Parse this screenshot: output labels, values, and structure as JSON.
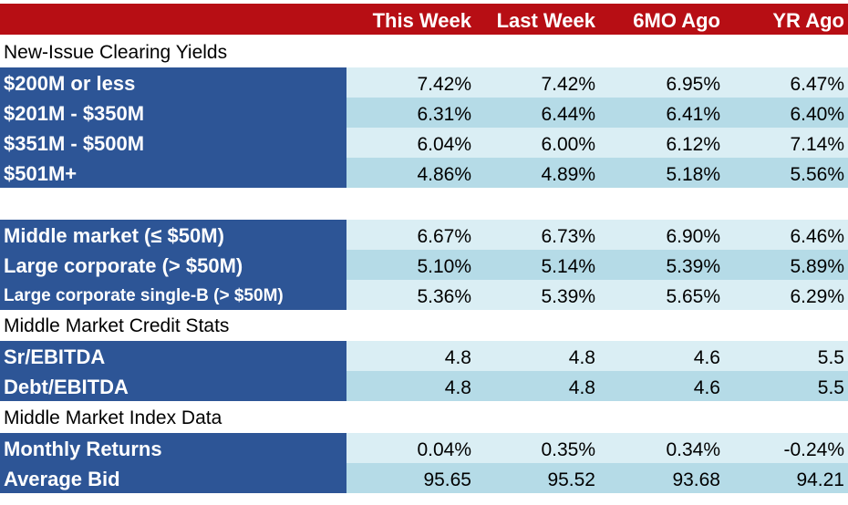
{
  "header": {
    "columns": [
      "This Week",
      "Last Week",
      "6MO Ago",
      "YR Ago"
    ]
  },
  "sections": {
    "new_issue": "New-Issue Clearing Yields",
    "credit_stats": "Middle Market Credit Stats",
    "index_data": "Middle Market Index Data"
  },
  "rows": [
    {
      "label": "$200M or less",
      "values": [
        "7.42%",
        "7.42%",
        "6.95%",
        "6.47%"
      ]
    },
    {
      "label": "$201M - $350M",
      "values": [
        "6.31%",
        "6.44%",
        "6.41%",
        "6.40%"
      ]
    },
    {
      "label": "$351M - $500M",
      "values": [
        "6.04%",
        "6.00%",
        "6.12%",
        "7.14%"
      ]
    },
    {
      "label": "$501M+",
      "values": [
        "4.86%",
        "4.89%",
        "5.18%",
        "5.56%"
      ]
    },
    {
      "label": "Middle market (≤ $50M)",
      "values": [
        "6.67%",
        "6.73%",
        "6.90%",
        "6.46%"
      ]
    },
    {
      "label": "Large corporate (> $50M)",
      "values": [
        "5.10%",
        "5.14%",
        "5.39%",
        "5.89%"
      ]
    },
    {
      "label": "Large corporate single-B (> $50M)",
      "values": [
        "5.36%",
        "5.39%",
        "5.65%",
        "6.29%"
      ]
    },
    {
      "label": "Sr/EBITDA",
      "values": [
        "4.8",
        "4.8",
        "4.6",
        "5.5"
      ]
    },
    {
      "label": "Debt/EBITDA",
      "values": [
        "4.8",
        "4.8",
        "4.6",
        "5.5"
      ]
    },
    {
      "label": "Monthly Returns",
      "values": [
        "0.04%",
        "0.35%",
        "0.34%",
        "-0.24%"
      ]
    },
    {
      "label": "Average Bid",
      "values": [
        "95.65",
        "95.52",
        "93.68",
        "94.21"
      ]
    }
  ],
  "colors": {
    "header_bg": "#b70e14",
    "label_bg": "#2d5596",
    "row_light": "#daeef4",
    "row_dark": "#b5dbe7"
  }
}
